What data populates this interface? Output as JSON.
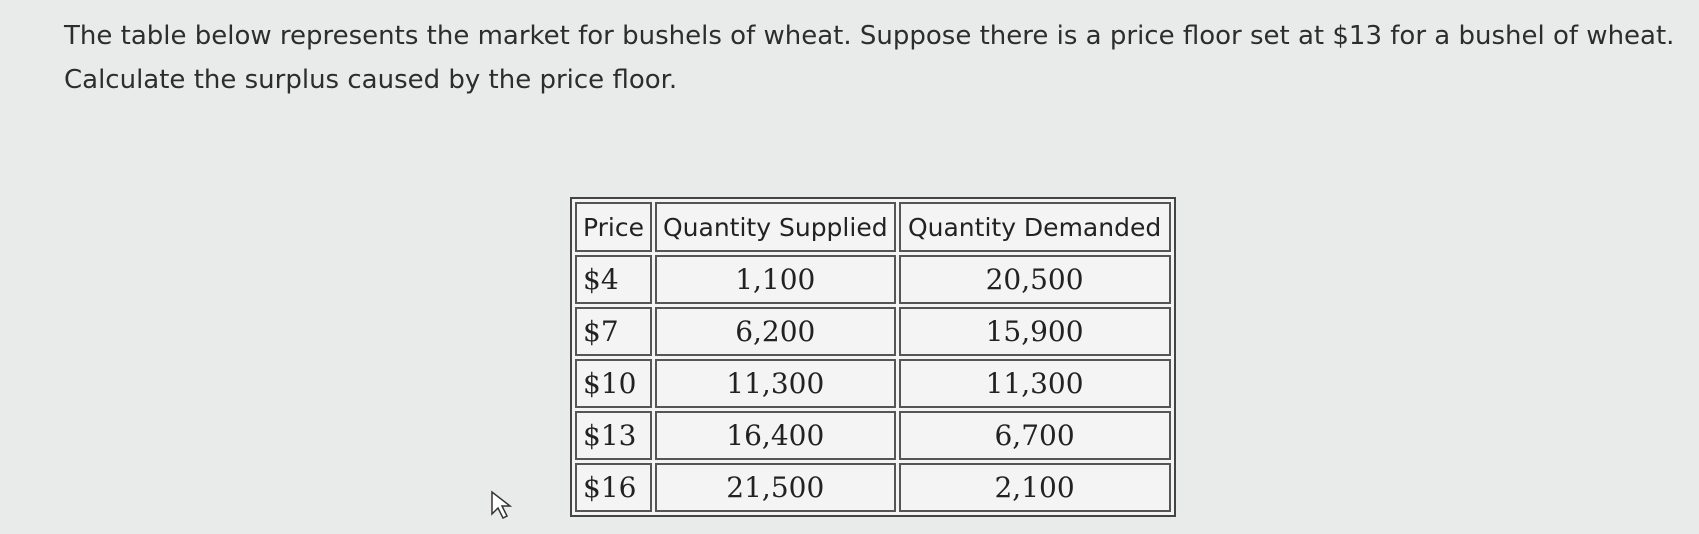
{
  "question": [
    "The table below represents the market for bushels of wheat. Suppose there is a price floor set at $13 for a bushel of wheat.",
    "Calculate the surplus caused by the price floor."
  ],
  "table": {
    "header": [
      "Price",
      "Quantity Supplied",
      "Quantity Demanded"
    ],
    "rows": [
      [
        "$4",
        "1,100",
        "20,500"
      ],
      [
        "$7",
        "6,200",
        "15,900"
      ],
      [
        "$10",
        "11,300",
        "11,300"
      ],
      [
        "$13",
        "16,400",
        "6,700"
      ],
      [
        "$16",
        "21,500",
        "2,100"
      ]
    ]
  }
}
